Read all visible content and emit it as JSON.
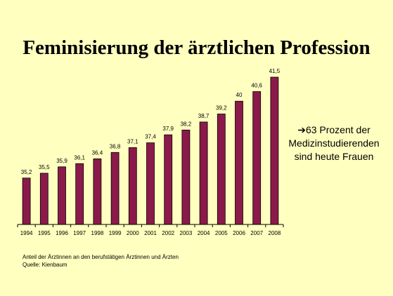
{
  "title": "Feminisierung der ärztlichen Profession",
  "callout": {
    "arrow": "➔",
    "lines": [
      "63 Prozent der",
      "Medizinstudierenden",
      "sind heute Frauen"
    ]
  },
  "footnote": {
    "description": "Anteil der Ärztinnen an den berufstätigen Ärztinnen und Ärzten",
    "source": "Quelle: Kienbaum"
  },
  "colors": {
    "background": "#ffffc0",
    "bar": "#8b1a4a",
    "bar_outline": "#000000",
    "axis": "#000000"
  },
  "chart_data": {
    "type": "bar",
    "categories": [
      "1994",
      "1995",
      "1996",
      "1997",
      "1998",
      "1999",
      "2000",
      "2001",
      "2002",
      "2003",
      "2004",
      "2005",
      "2006",
      "2007",
      "2008"
    ],
    "values": [
      35.2,
      35.5,
      35.9,
      36.1,
      36.4,
      36.8,
      37.1,
      37.4,
      37.9,
      38.2,
      38.7,
      39.2,
      40,
      40.6,
      41.5
    ],
    "value_labels": [
      "35,2",
      "35,5",
      "35,9",
      "36,1",
      "36,4",
      "36,8",
      "37,1",
      "37,4",
      "37,9",
      "38,2",
      "38,7",
      "39,2",
      "40",
      "40,6",
      "41,5"
    ],
    "title": "",
    "xlabel": "",
    "ylabel": "",
    "ylim": [
      32.3,
      41.5
    ],
    "grid": false,
    "legend": "none"
  }
}
